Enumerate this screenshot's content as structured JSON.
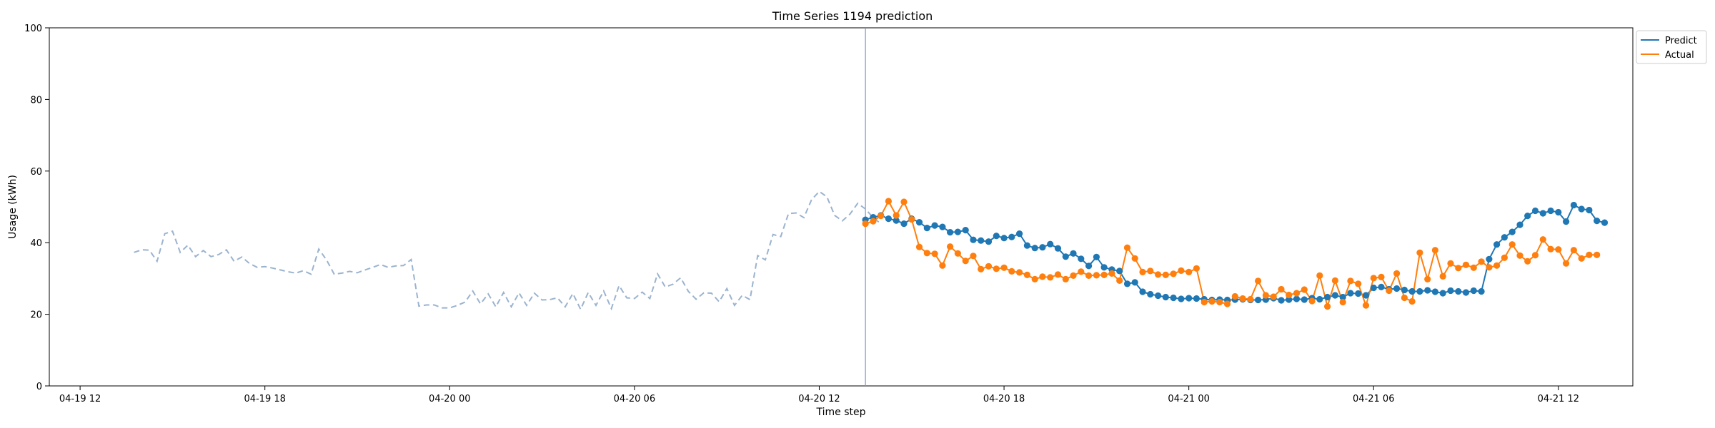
{
  "chart_data": {
    "type": "line",
    "title": "Time Series 1194 prediction",
    "xlabel": "Time step",
    "ylabel": "Usage (kWh)",
    "ylim": [
      0,
      100
    ],
    "y_ticks": [
      "0",
      "20",
      "40",
      "60",
      "80",
      "100"
    ],
    "xlim": [
      "2024-04-19 11:00",
      "2024-04-21 14:25"
    ],
    "x_ticks": [
      {
        "t": "2024-04-19 12:00",
        "label": "04-19 12"
      },
      {
        "t": "2024-04-19 18:00",
        "label": "04-19 18"
      },
      {
        "t": "2024-04-20 00:00",
        "label": "04-20 00"
      },
      {
        "t": "2024-04-20 06:00",
        "label": "04-20 06"
      },
      {
        "t": "2024-04-20 12:00",
        "label": "04-20 12"
      },
      {
        "t": "2024-04-20 18:00",
        "label": "04-20 18"
      },
      {
        "t": "2024-04-21 00:00",
        "label": "04-21 00"
      },
      {
        "t": "2024-04-21 06:00",
        "label": "04-21 06"
      },
      {
        "t": "2024-04-21 12:00",
        "label": "04-21 12"
      }
    ],
    "forecast_start": "2024-04-20 13:30",
    "legend": {
      "placement": "upper-right-outside",
      "entries": [
        "Predict",
        "Actual"
      ]
    },
    "colors": {
      "predict": "#1f77b4",
      "actual": "#ff7f0e",
      "history": "#9bb3cf",
      "vline": "#7f97c2"
    },
    "history": {
      "start": "2024-04-19 13:45",
      "step_minutes": 15,
      "values": [
        37.3,
        38.0,
        37.9,
        34.8,
        42.5,
        43.2,
        37.3,
        39.3,
        36.1,
        37.8,
        36.1,
        36.7,
        38.0,
        34.8,
        36.0,
        34.2,
        33.1,
        33.3,
        32.9,
        32.4,
        31.9,
        31.5,
        32.2,
        31.2,
        38.2,
        35.2,
        31.2,
        31.5,
        32.0,
        31.6,
        32.4,
        33.1,
        33.9,
        33.1,
        33.5,
        33.6,
        35.3,
        22.3,
        22.6,
        22.6,
        21.8,
        21.8,
        22.5,
        23.4,
        26.5,
        22.9,
        25.7,
        22.1,
        26.1,
        22.1,
        26.0,
        22.5,
        25.9,
        24.0,
        24.1,
        24.6,
        22.1,
        25.8,
        21.4,
        26.1,
        22.5,
        26.5,
        21.6,
        28.0,
        24.6,
        24.4,
        26.2,
        24.4,
        31.3,
        27.6,
        28.4,
        30.2,
        26.4,
        24.2,
        26.0,
        25.9,
        23.5,
        27.2,
        22.5,
        25.3,
        24.1,
        36.4,
        35.2,
        42.3,
        41.7,
        48.1,
        48.3,
        47.0,
        52.0,
        54.3,
        52.8,
        47.6,
        46.1,
        48.0,
        51.0,
        49.4,
        47.0,
        45.3
      ]
    },
    "series": [
      {
        "name": "Predict",
        "start": "2024-04-20 13:30",
        "step_minutes": 15,
        "values": [
          46.4,
          47.1,
          47.6,
          46.7,
          46.2,
          45.3,
          46.7,
          45.7,
          44.1,
          44.8,
          44.4,
          42.9,
          43.0,
          43.5,
          40.8,
          40.6,
          40.3,
          41.9,
          41.3,
          41.6,
          42.5,
          39.2,
          38.5,
          38.7,
          39.6,
          38.4,
          36.1,
          37.0,
          35.5,
          33.5,
          36.0,
          33.1,
          32.5,
          32.1,
          28.5,
          28.9,
          26.3,
          25.6,
          25.2,
          24.8,
          24.6,
          24.3,
          24.5,
          24.4,
          24.2,
          24.0,
          24.1,
          24.0,
          24.1,
          24.2,
          24.0,
          24.0,
          24.1,
          24.5,
          23.9,
          24.1,
          24.3,
          24.1,
          24.5,
          24.2,
          24.8,
          25.3,
          24.8,
          25.9,
          25.8,
          25.3,
          27.4,
          27.6,
          27.0,
          27.2,
          26.8,
          26.4,
          26.4,
          26.7,
          26.3,
          25.9,
          26.6,
          26.4,
          26.1,
          26.6,
          26.4,
          35.4,
          39.5,
          41.5,
          43.0,
          45.0,
          47.5,
          48.9,
          48.2,
          48.9,
          48.5,
          45.9,
          50.5,
          49.4,
          49.1,
          46.1,
          45.6
        ]
      },
      {
        "name": "Actual",
        "start": "2024-04-20 13:30",
        "step_minutes": 15,
        "values": [
          45.3,
          46.0,
          47.5,
          51.6,
          47.6,
          51.4,
          46.5,
          38.8,
          37.1,
          36.9,
          33.6,
          38.9,
          37.0,
          34.9,
          36.3,
          32.6,
          33.4,
          32.7,
          33.0,
          32.0,
          31.7,
          31.0,
          29.8,
          30.5,
          30.3,
          31.1,
          29.8,
          30.8,
          31.9,
          30.8,
          30.9,
          31.0,
          31.4,
          29.4,
          38.6,
          35.6,
          31.8,
          32.1,
          31.1,
          31.0,
          31.3,
          32.2,
          31.8,
          32.8,
          23.4,
          23.6,
          23.4,
          22.9,
          25.0,
          24.4,
          24.2,
          29.3,
          25.3,
          24.9,
          27.0,
          25.4,
          25.9,
          26.9,
          23.7,
          30.8,
          22.2,
          29.4,
          23.4,
          29.3,
          28.5,
          22.5,
          30.1,
          30.4,
          26.6,
          31.4,
          24.6,
          23.6,
          37.2,
          29.8,
          37.9,
          30.6,
          34.2,
          32.9,
          33.8,
          33.0,
          34.7,
          33.1,
          33.6,
          35.8,
          39.5,
          36.4,
          34.8,
          36.5,
          40.9,
          38.2,
          38.1,
          34.2,
          37.9,
          35.6,
          36.6,
          36.6
        ]
      }
    ]
  }
}
